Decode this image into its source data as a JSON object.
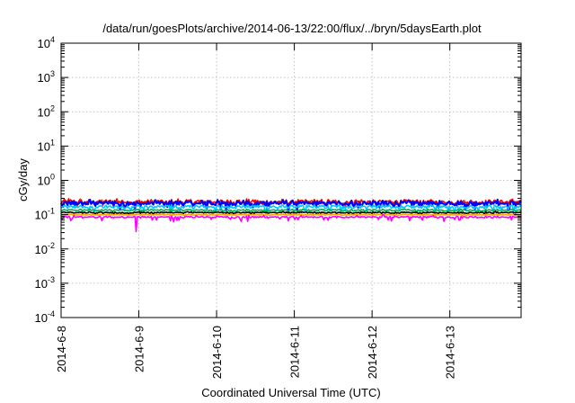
{
  "chart_data": {
    "type": "line",
    "title": "/data/run/goesPlots/archive/2014-06-13/22:00/flux/../bryn/5daysEarth.plot",
    "xlabel": "Coordinated Universal Time (UTC)",
    "ylabel": "cGy/day",
    "y_scale": "log",
    "ylim": [
      0.0001,
      10000
    ],
    "y_ticks": [
      {
        "base": "10",
        "exp": "-4",
        "value": 0.0001
      },
      {
        "base": "10",
        "exp": "-3",
        "value": 0.001
      },
      {
        "base": "10",
        "exp": "-2",
        "value": 0.01
      },
      {
        "base": "10",
        "exp": "-1",
        "value": 0.1
      },
      {
        "base": "10",
        "exp": "0",
        "value": 1
      },
      {
        "base": "10",
        "exp": "1",
        "value": 10
      },
      {
        "base": "10",
        "exp": "2",
        "value": 100
      },
      {
        "base": "10",
        "exp": "3",
        "value": 1000
      },
      {
        "base": "10",
        "exp": "4",
        "value": 10000
      }
    ],
    "xlim": [
      "2014-06-08 00:00",
      "2014-06-13 22:00"
    ],
    "x_ticks": [
      "2014-6-8",
      "2014-6-9",
      "2014-6-10",
      "2014-6-11",
      "2014-6-12",
      "2014-6-13"
    ],
    "grid": true,
    "series": [
      {
        "color": "#ff0000",
        "baseline": 0.24,
        "noise": 0.12,
        "spikes": 0.1
      },
      {
        "color": "#0000ff",
        "baseline": 0.215,
        "noise": 0.14,
        "spikes": 0.18
      },
      {
        "color": "#00c8ff",
        "baseline": 0.17,
        "noise": 0.1,
        "spikes": 0.15
      },
      {
        "color": "#00b050",
        "baseline": 0.135,
        "noise": 0.05,
        "spikes": 0.05
      },
      {
        "color": "#000000",
        "baseline": 0.115,
        "noise": 0.04,
        "spikes": 0.04
      },
      {
        "color": "#ffa500",
        "baseline": 0.1,
        "noise": 0.03,
        "spikes": 0.03
      },
      {
        "color": "#ff00ff",
        "baseline": 0.085,
        "noise": 0.05,
        "spikes": 0.12
      }
    ]
  }
}
